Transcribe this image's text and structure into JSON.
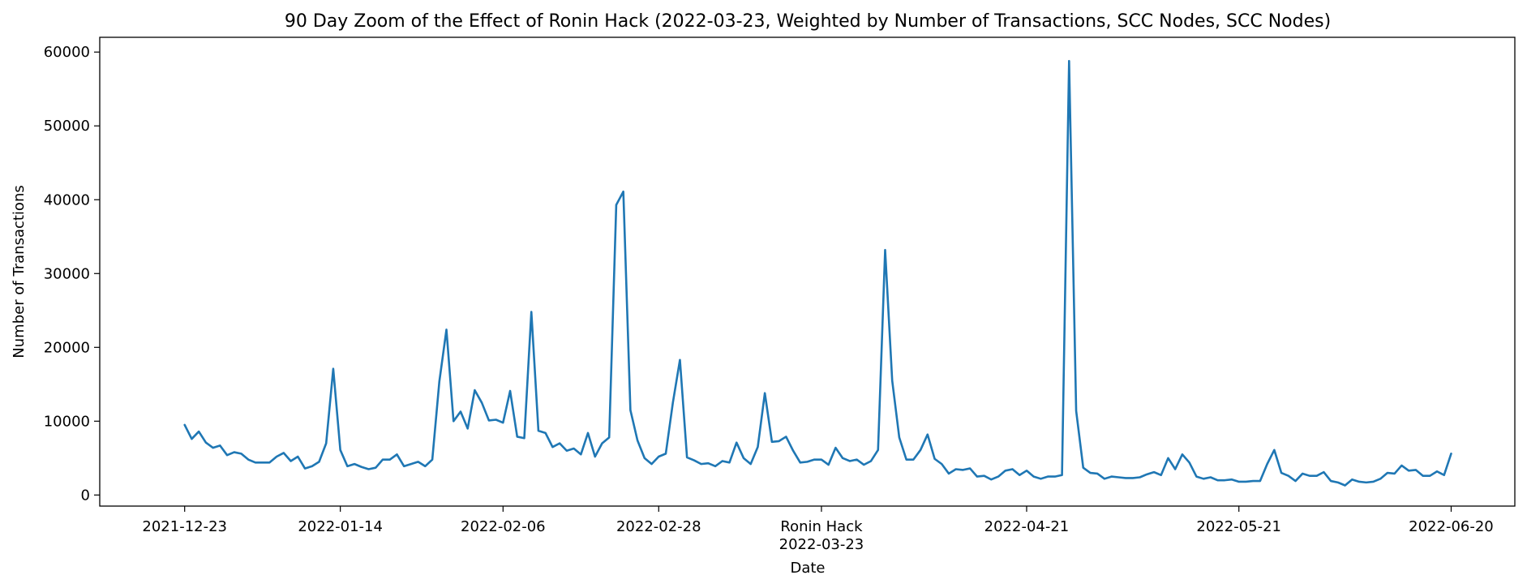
{
  "chart_data": {
    "type": "line",
    "title": "90 Day Zoom of the Effect of Ronin Hack (2022-03-23, Weighted by Number of Transactions, SCC Nodes, SCC Nodes)",
    "xlabel": "Date",
    "ylabel": "Number of Transactions",
    "xlim": [
      "2021-12-11",
      "2022-06-29"
    ],
    "ylim": [
      -1500,
      62000
    ],
    "grid": false,
    "x_ticks": [
      {
        "date": "2021-12-23",
        "label": "2021-12-23"
      },
      {
        "date": "2022-01-14",
        "label": "2022-01-14"
      },
      {
        "date": "2022-02-06",
        "label": "2022-02-06"
      },
      {
        "date": "2022-02-28",
        "label": "2022-02-28"
      },
      {
        "date": "2022-03-23",
        "label": "Ronin Hack",
        "label2": "2022-03-23"
      },
      {
        "date": "2022-04-21",
        "label": "2022-04-21"
      },
      {
        "date": "2022-05-21",
        "label": "2022-05-21"
      },
      {
        "date": "2022-06-20",
        "label": "2022-06-20"
      }
    ],
    "y_ticks": [
      0,
      10000,
      20000,
      30000,
      40000,
      50000,
      60000
    ],
    "series": [
      {
        "name": "",
        "color": "#1f77b4",
        "start_date": "2021-12-23",
        "values": [
          9500,
          7600,
          8600,
          7100,
          6400,
          6700,
          5400,
          5800,
          5600,
          4800,
          4400,
          4400,
          4400,
          5200,
          5700,
          4600,
          5200,
          3600,
          3900,
          4500,
          7000,
          17100,
          6100,
          3900,
          4200,
          3800,
          3500,
          3700,
          4800,
          4800,
          5500,
          3900,
          4200,
          4500,
          3900,
          4800,
          15400,
          22400,
          10000,
          11300,
          9000,
          14200,
          12500,
          10100,
          10200,
          9800,
          14100,
          7900,
          7700,
          24800,
          8700,
          8400,
          6500,
          7000,
          6000,
          6300,
          5500,
          8400,
          5200,
          7000,
          7800,
          39300,
          41100,
          11500,
          7400,
          5000,
          4200,
          5200,
          5600,
          12500,
          18300,
          5100,
          4700,
          4200,
          4300,
          3900,
          4600,
          4400,
          7100,
          5000,
          4200,
          6500,
          13800,
          7200,
          7300,
          7900,
          6000,
          4400,
          4500,
          4800,
          4800,
          4100,
          6400,
          5000,
          4600,
          4800,
          4100,
          4600,
          6100,
          33200,
          15500,
          7800,
          4800,
          4800,
          6100,
          8200,
          4900,
          4200,
          2900,
          3500,
          3400,
          3600,
          2500,
          2600,
          2100,
          2500,
          3300,
          3500,
          2700,
          3300,
          2500,
          2200,
          2500,
          2500,
          2700,
          58800,
          11400,
          3700,
          3000,
          2900,
          2200,
          2500,
          2400,
          2300,
          2300,
          2400,
          2800,
          3100,
          2700,
          5000,
          3500,
          5500,
          4400,
          2500,
          2200,
          2400,
          2000,
          2000,
          2100,
          1800,
          1800,
          1900,
          1900,
          4200,
          6100,
          3000,
          2600,
          1900,
          2900,
          2600,
          2600,
          3100,
          1900,
          1700,
          1300,
          2100,
          1800,
          1700,
          1800,
          2200,
          3000,
          2900,
          4000,
          3300,
          3400,
          2600,
          2600,
          3200,
          2700,
          5600
        ]
      }
    ]
  }
}
